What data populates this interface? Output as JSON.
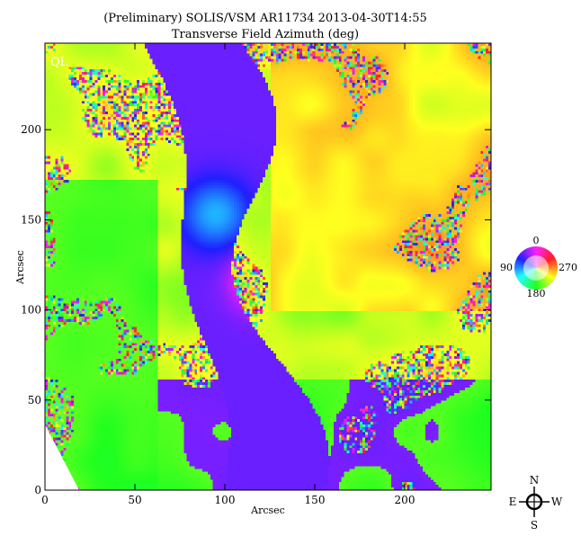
{
  "chart_data": {
    "type": "heatmap",
    "title": "(Preliminary) SOLIS/VSM AR11734 2013-04-30T14:55",
    "subtitle": "Transverse Field Azimuth (deg)",
    "xlabel": "Arcsec",
    "ylabel": "Arcsec",
    "xlim": [
      0,
      248
    ],
    "ylim": [
      0,
      248
    ],
    "xticks": [
      0,
      50,
      100,
      150,
      200
    ],
    "yticks": [
      0,
      50,
      100,
      150,
      200
    ],
    "panel_tag": "QL",
    "colorbar": {
      "type": "color-wheel",
      "labels": {
        "top": "0",
        "left": "90",
        "bottom": "180",
        "right": "270"
      }
    },
    "compass": {
      "north": "N",
      "south": "S",
      "east": "E",
      "west": "W"
    },
    "colors": {
      "0": "#ff33cc",
      "45": "#ff8c5a",
      "90": "#ffe000",
      "135": "#7fe07f",
      "180": "#22e8f0",
      "225": "#4aa8ff",
      "270": "#8c7cff",
      "315": "#e040ff"
    }
  }
}
